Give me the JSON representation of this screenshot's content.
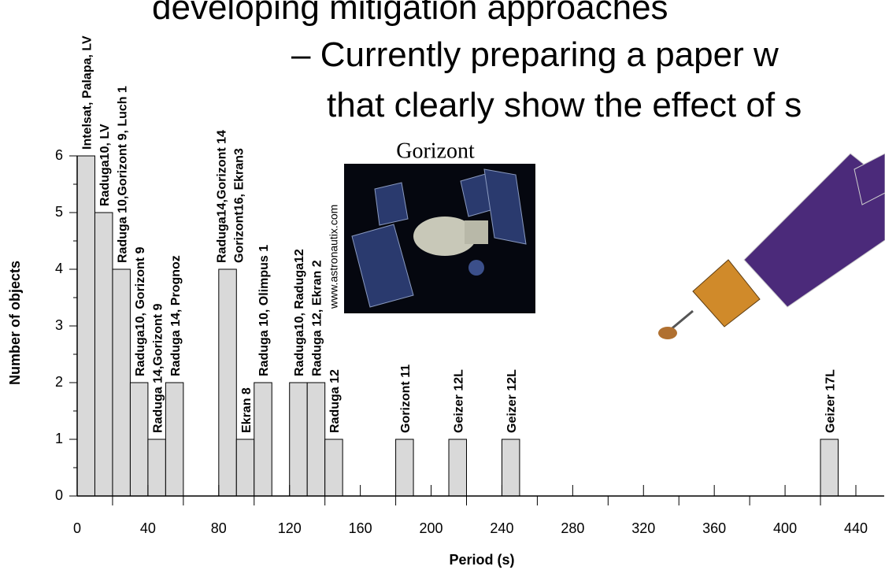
{
  "slide": {
    "lines": [
      "developing mitigation approaches",
      "– Currently preparing a paper w",
      "that clearly show the effect of s"
    ]
  },
  "image": {
    "caption": "Gorizont",
    "credit": "www.astronautix.com"
  },
  "chart_data": {
    "type": "histogram",
    "xlabel": "Period (s)",
    "ylabel": "Number of objects",
    "bins": [
      0,
      10,
      20,
      30,
      40,
      50,
      60,
      70,
      80,
      90,
      100,
      110,
      120,
      130,
      140,
      150,
      160,
      170,
      180,
      190,
      200,
      210,
      220,
      230,
      240,
      250,
      260,
      270,
      280,
      290,
      300,
      310,
      320,
      330,
      340,
      350,
      360,
      370,
      380,
      390,
      400,
      410,
      420,
      430
    ],
    "counts": [
      6,
      5,
      4,
      2,
      1,
      2,
      0,
      0,
      4,
      1,
      2,
      0,
      2,
      2,
      1,
      0,
      0,
      0,
      1,
      0,
      0,
      1,
      0,
      0,
      1,
      0,
      0,
      0,
      0,
      0,
      0,
      0,
      0,
      0,
      0,
      0,
      0,
      0,
      0,
      0,
      0,
      0,
      1
    ],
    "bar_labels": [
      [
        "Intelsat, Palapa, LV"
      ],
      [
        "Raduga10, LV"
      ],
      [
        "Raduga 10,Gorizont 9, Luch 1"
      ],
      [
        "Raduga10, Gorizont 9"
      ],
      [
        "Raduga 14,Gorizont 9"
      ],
      [
        "Raduga 14, Prognoz"
      ],
      null,
      null,
      [
        "Raduga14,Gorizont 14",
        "Gorizont16, Ekran3"
      ],
      [
        "Ekran 8"
      ],
      [
        "Raduga 10, Olimpus 1"
      ],
      null,
      [
        "Raduga10, Raduga12"
      ],
      [
        "Raduga 12, Ekran 2"
      ],
      [
        "Raduga 12"
      ],
      null,
      null,
      null,
      [
        "Gorizont 11"
      ],
      null,
      null,
      [
        "Geizer 12L"
      ],
      null,
      null,
      [
        "Geizer 12L"
      ],
      null,
      null,
      null,
      null,
      null,
      null,
      null,
      null,
      null,
      null,
      null,
      null,
      null,
      null,
      null,
      null,
      null,
      [
        "Geizer 17L"
      ]
    ],
    "color": "#d9d9d9",
    "xlim": [
      0,
      456
    ],
    "ylim": [
      0,
      6
    ],
    "xticks": [
      0,
      40,
      80,
      120,
      160,
      200,
      240,
      280,
      320,
      360,
      400,
      440
    ],
    "xminorticks": [
      20,
      60,
      100,
      140,
      180,
      220,
      260,
      300,
      340,
      380,
      420
    ],
    "yticks": [
      0,
      1,
      2,
      3,
      4,
      5,
      6
    ],
    "yminorticks": [
      0.5,
      1.5,
      2.5,
      3.5,
      4.5,
      5.5
    ]
  }
}
